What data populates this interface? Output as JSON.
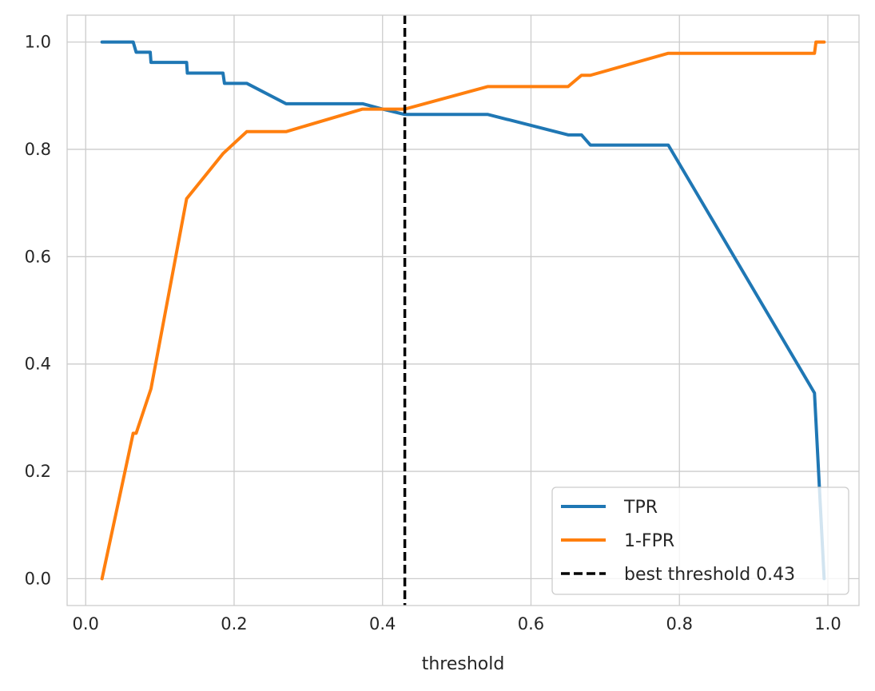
{
  "chart_data": {
    "type": "line",
    "title": "",
    "xlabel": "threshold",
    "ylabel": "",
    "xlim": [
      -0.025,
      1.042
    ],
    "ylim": [
      -0.05,
      1.05
    ],
    "grid": true,
    "legend_position": "bottom-right",
    "x_ticks": [
      0.0,
      0.2,
      0.4,
      0.6,
      0.8,
      1.0
    ],
    "x_tick_labels": [
      "0.0",
      "0.2",
      "0.4",
      "0.6",
      "0.8",
      "1.0"
    ],
    "y_ticks": [
      0.0,
      0.2,
      0.4,
      0.6,
      0.8,
      1.0
    ],
    "y_tick_labels": [
      "0.0",
      "0.2",
      "0.4",
      "0.6",
      "0.8",
      "1.0"
    ],
    "series": [
      {
        "name": "TPR",
        "color": "#1f77b4",
        "style": "solid",
        "x": [
          0.022,
          0.064,
          0.068,
          0.087,
          0.088,
          0.136,
          0.137,
          0.185,
          0.187,
          0.217,
          0.27,
          0.373,
          0.4,
          0.43,
          0.542,
          0.65,
          0.668,
          0.68,
          0.785,
          0.982,
          0.995
        ],
        "y": [
          1.0,
          1.0,
          0.981,
          0.981,
          0.962,
          0.962,
          0.942,
          0.942,
          0.923,
          0.923,
          0.885,
          0.885,
          0.875,
          0.865,
          0.865,
          0.827,
          0.827,
          0.808,
          0.808,
          0.346,
          0.0
        ]
      },
      {
        "name": "1-FPR",
        "color": "#ff7f0e",
        "style": "solid",
        "x": [
          0.022,
          0.064,
          0.068,
          0.088,
          0.136,
          0.185,
          0.217,
          0.27,
          0.373,
          0.43,
          0.542,
          0.65,
          0.668,
          0.68,
          0.785,
          0.982,
          0.984,
          0.995
        ],
        "y": [
          0.0,
          0.271,
          0.271,
          0.354,
          0.708,
          0.792,
          0.833,
          0.833,
          0.875,
          0.875,
          0.917,
          0.917,
          0.938,
          0.938,
          0.979,
          0.979,
          1.0,
          1.0
        ]
      }
    ],
    "vlines": [
      {
        "name": "best threshold 0.43",
        "x": 0.43,
        "color": "#000000",
        "style": "dashed"
      }
    ],
    "legend": [
      {
        "label": "TPR",
        "color": "#1f77b4",
        "style": "solid"
      },
      {
        "label": "1-FPR",
        "color": "#ff7f0e",
        "style": "solid"
      },
      {
        "label": "best threshold 0.43",
        "color": "#000000",
        "style": "dashed"
      }
    ]
  }
}
